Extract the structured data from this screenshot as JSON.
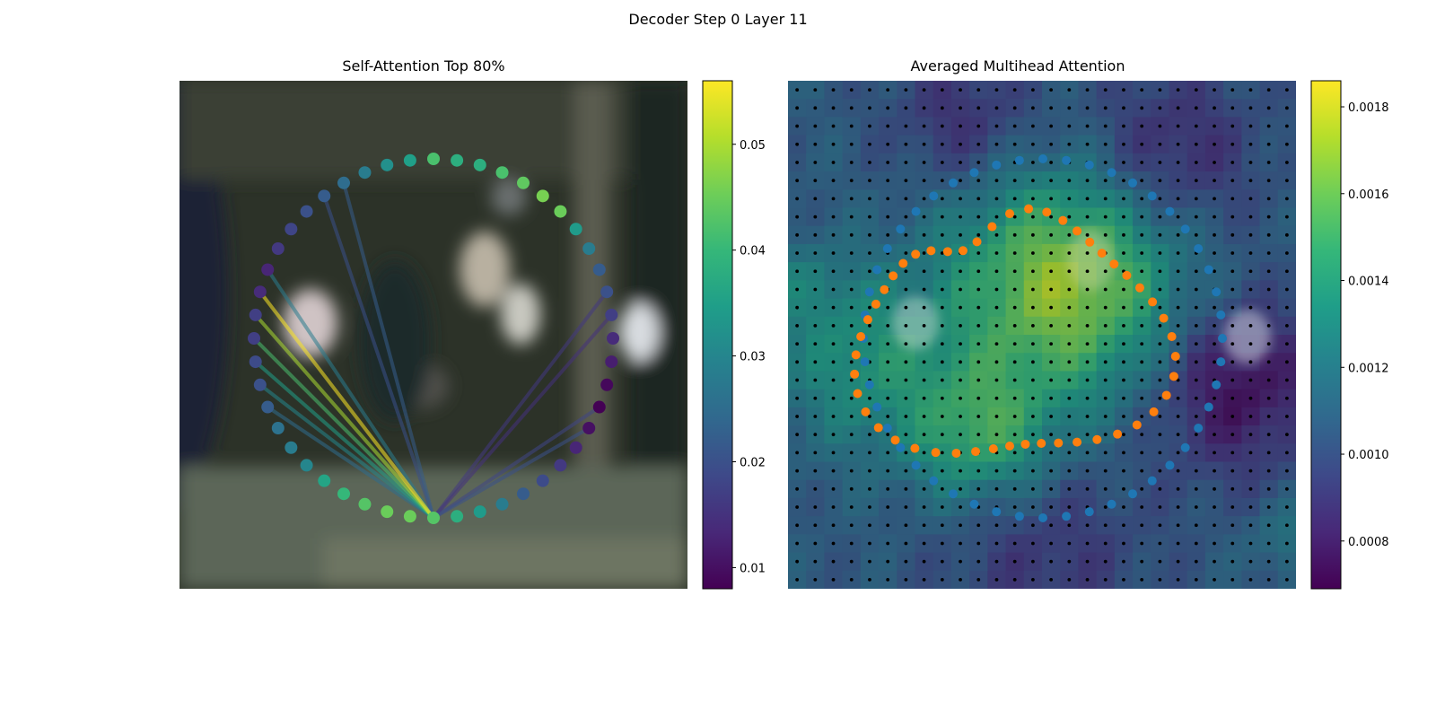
{
  "figure": {
    "suptitle": "Decoder Step 0 Layer 11"
  },
  "colormap": {
    "name": "viridis",
    "stops": [
      "#440154",
      "#482878",
      "#3e4989",
      "#31688e",
      "#26828e",
      "#1f9e89",
      "#35b779",
      "#6ece58",
      "#b5de2b",
      "#fde725"
    ]
  },
  "chart_data": [
    {
      "type": "scatter",
      "title": "Self-Attention Top 80%",
      "description_points": "48 tokens on a circle, colored by attention weight",
      "background": "blurred image",
      "values": [
        0.043,
        0.045,
        0.045,
        0.043,
        0.04,
        0.036,
        0.03,
        0.028,
        0.026,
        0.022,
        0.02,
        0.019,
        0.017,
        0.017,
        0.014,
        0.013,
        0.016,
        0.018,
        0.02,
        0.022,
        0.025,
        0.028,
        0.032,
        0.035,
        0.042,
        0.038,
        0.038,
        0.042,
        0.044,
        0.046,
        0.045,
        0.034,
        0.028,
        0.022,
        0.02,
        0.017,
        0.014,
        0.012,
        0.009,
        0.008,
        0.01,
        0.013,
        0.016,
        0.019,
        0.022,
        0.028,
        0.034,
        0.038
      ],
      "query_index": 0,
      "edges": [
        {
          "to": 14,
          "weight": 0.056
        },
        {
          "to": 13,
          "weight": 0.05
        },
        {
          "to": 12,
          "weight": 0.042
        },
        {
          "to": 11,
          "weight": 0.035
        },
        {
          "to": 10,
          "weight": 0.03
        },
        {
          "to": 9,
          "weight": 0.025
        },
        {
          "to": 40,
          "weight": 0.02
        },
        {
          "to": 39,
          "weight": 0.018
        },
        {
          "to": 20,
          "weight": 0.022
        },
        {
          "to": 19,
          "weight": 0.02
        },
        {
          "to": 15,
          "weight": 0.028
        },
        {
          "to": 34,
          "weight": 0.016
        },
        {
          "to": 35,
          "weight": 0.015
        }
      ],
      "colorbar": {
        "min": 0.008,
        "max": 0.056,
        "ticks": [
          "0.01",
          "0.02",
          "0.03",
          "0.04",
          "0.05"
        ],
        "tick_values": [
          0.01,
          0.02,
          0.03,
          0.04,
          0.05
        ]
      }
    },
    {
      "type": "heatmap",
      "title": "Averaged Multihead Attention",
      "grid": [
        28,
        28
      ],
      "colorbar": {
        "min": 0.00069,
        "max": 0.00186,
        "ticks": [
          "0.0008",
          "0.0010",
          "0.0012",
          "0.0014",
          "0.0016",
          "0.0018"
        ],
        "tick_values": [
          0.0008,
          0.001,
          0.0012,
          0.0014,
          0.0016,
          0.0018
        ]
      },
      "series": [
        {
          "name": "",
          "color": "#1f77b4",
          "count": 48
        },
        {
          "name": "",
          "color": "#ff7f0e",
          "count": 48
        }
      ]
    }
  ]
}
